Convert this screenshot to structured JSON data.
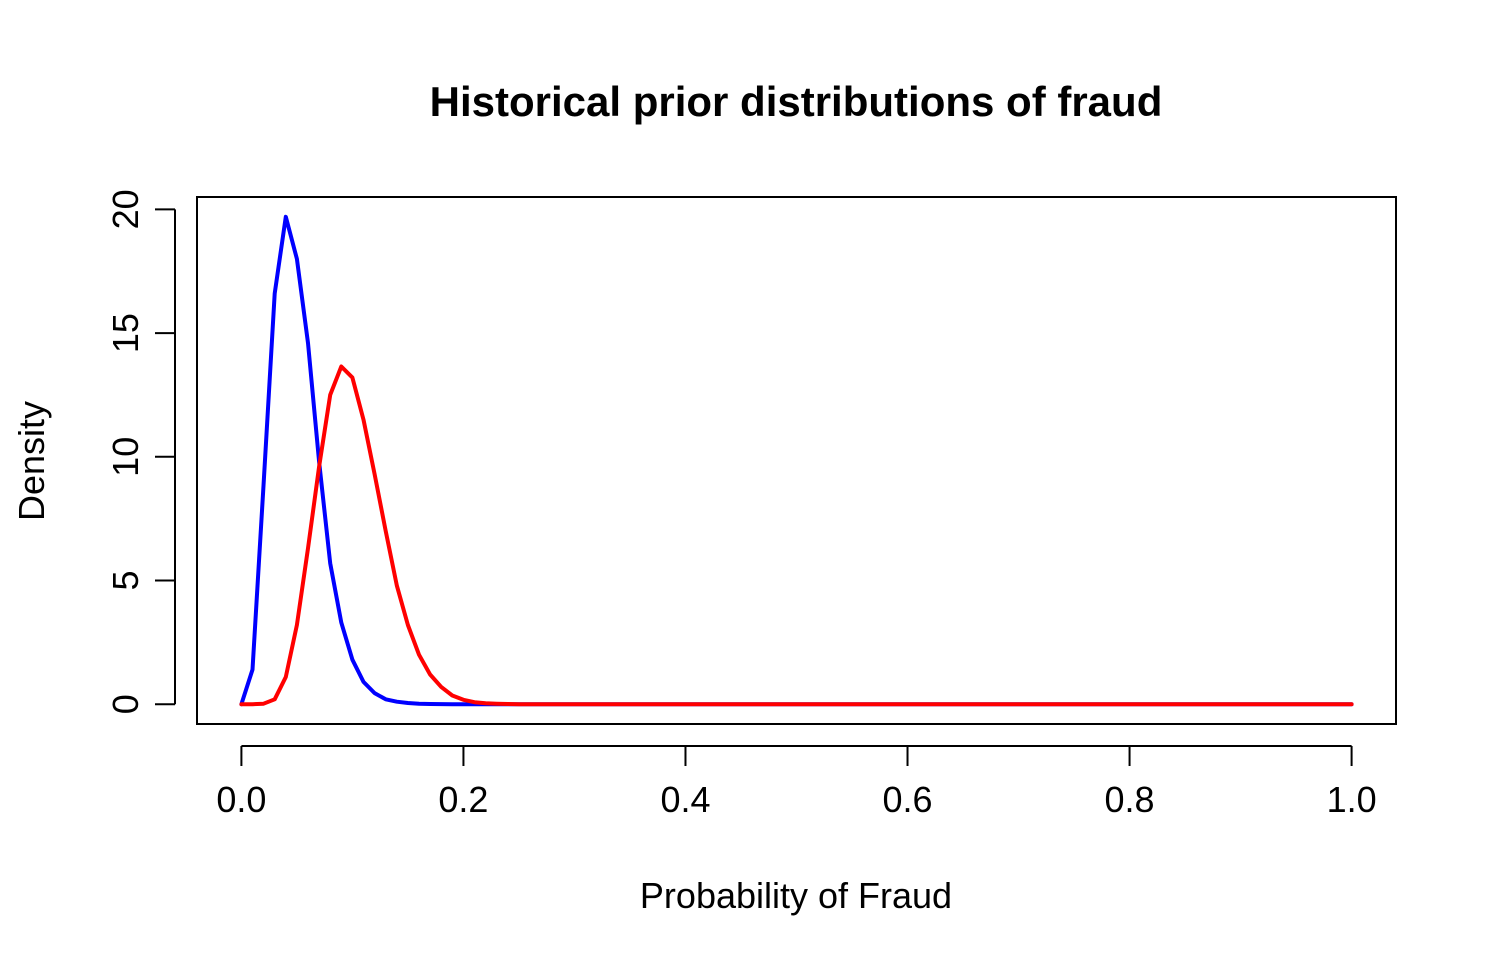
{
  "chart_data": {
    "type": "line",
    "title": "Historical prior distributions of fraud",
    "xlabel": "Probability of Fraud",
    "ylabel": "Density",
    "xlim": [
      -0.04,
      1.04
    ],
    "ylim": [
      -0.8,
      20.5
    ],
    "x_ticks": [
      0.0,
      0.2,
      0.4,
      0.6,
      0.8,
      1.0
    ],
    "x_tick_labels": [
      "0.0",
      "0.2",
      "0.4",
      "0.6",
      "0.8",
      "1.0"
    ],
    "y_ticks": [
      0,
      5,
      10,
      15,
      20
    ],
    "y_tick_labels": [
      "0",
      "5",
      "10",
      "15",
      "20"
    ],
    "grid": false,
    "legend": null,
    "x": [
      0.0,
      0.01,
      0.02,
      0.03,
      0.04,
      0.05,
      0.06,
      0.07,
      0.08,
      0.09,
      0.1,
      0.11,
      0.12,
      0.13,
      0.14,
      0.15,
      0.16,
      0.17,
      0.18,
      0.19,
      0.2,
      0.21,
      0.22,
      0.23,
      0.24,
      0.25,
      0.3,
      0.4,
      0.5,
      0.6,
      0.7,
      0.8,
      0.9,
      1.0
    ],
    "series": [
      {
        "color": "#0000ff",
        "values": [
          0,
          1.4,
          8.9,
          16.6,
          19.7,
          18.0,
          14.6,
          9.8,
          5.7,
          3.3,
          1.8,
          0.9,
          0.45,
          0.2,
          0.1,
          0.05,
          0.02,
          0.01,
          0.005,
          0.002,
          0.001,
          0,
          0,
          0,
          0,
          0,
          0,
          0,
          0,
          0,
          0,
          0,
          0,
          0
        ]
      },
      {
        "color": "#ff0000",
        "values": [
          0,
          0.0,
          0.02,
          0.2,
          1.1,
          3.2,
          6.3,
          9.6,
          12.5,
          13.65,
          13.2,
          11.5,
          9.3,
          7.0,
          4.8,
          3.2,
          2.0,
          1.2,
          0.7,
          0.35,
          0.18,
          0.08,
          0.04,
          0.02,
          0.01,
          0,
          0,
          0,
          0,
          0,
          0,
          0,
          0,
          0
        ]
      }
    ]
  }
}
